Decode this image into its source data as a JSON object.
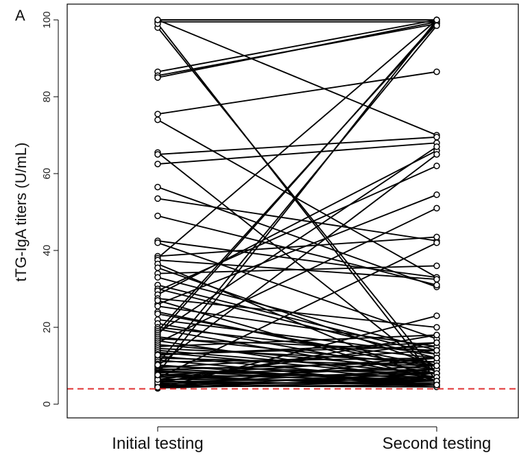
{
  "chart_data": {
    "type": "line",
    "panel_label": "A",
    "ylabel": "tTG-IgA titers (U/mL)",
    "categories": [
      "Initial testing",
      "Second testing"
    ],
    "ylim": [
      0,
      100
    ],
    "yticks": [
      0,
      20,
      40,
      60,
      80,
      100
    ],
    "reference_line": {
      "y": 4,
      "color": "#e03030",
      "style": "dashed"
    },
    "line_color": "#000000",
    "pairs": [
      [
        100,
        100
      ],
      [
        99.5,
        99.5
      ],
      [
        98,
        8
      ],
      [
        99,
        6
      ],
      [
        100,
        70
      ],
      [
        86.5,
        100
      ],
      [
        85.5,
        99
      ],
      [
        85,
        99.5
      ],
      [
        75.5,
        86.5
      ],
      [
        74,
        33
      ],
      [
        65.5,
        8
      ],
      [
        65,
        69.5
      ],
      [
        62.5,
        68
      ],
      [
        56.5,
        30.5
      ],
      [
        53.5,
        42.5
      ],
      [
        49,
        31
      ],
      [
        42.5,
        33
      ],
      [
        42,
        17
      ],
      [
        38.5,
        43.5
      ],
      [
        38,
        100
      ],
      [
        37.5,
        32.5
      ],
      [
        36.5,
        6
      ],
      [
        35.5,
        10
      ],
      [
        34,
        36
      ],
      [
        31,
        13
      ],
      [
        30,
        12
      ],
      [
        29.5,
        62
      ],
      [
        28.5,
        66
      ],
      [
        27.5,
        20
      ],
      [
        26,
        54.5
      ],
      [
        25.5,
        15
      ],
      [
        24,
        9
      ],
      [
        22,
        13
      ],
      [
        21,
        8
      ],
      [
        20,
        12
      ],
      [
        19.5,
        7
      ],
      [
        19,
        99
      ],
      [
        18.5,
        67
      ],
      [
        18,
        99.5
      ],
      [
        17.5,
        10
      ],
      [
        17,
        14
      ],
      [
        16.5,
        6
      ],
      [
        16,
        51
      ],
      [
        15.5,
        9
      ],
      [
        15,
        18
      ],
      [
        14.5,
        11
      ],
      [
        14,
        8
      ],
      [
        13.5,
        7
      ],
      [
        13,
        15
      ],
      [
        12.5,
        6
      ],
      [
        12,
        10
      ],
      [
        11.5,
        5
      ],
      [
        11,
        12
      ],
      [
        10.5,
        98.5
      ],
      [
        10,
        65
      ],
      [
        9.8,
        8
      ],
      [
        9.5,
        14
      ],
      [
        9.2,
        6
      ],
      [
        9,
        11
      ],
      [
        8.8,
        5
      ],
      [
        8.5,
        7
      ],
      [
        8.2,
        9
      ],
      [
        8,
        100
      ],
      [
        7.8,
        6
      ],
      [
        7.5,
        12
      ],
      [
        7.2,
        5
      ],
      [
        7,
        8
      ],
      [
        6.8,
        42
      ],
      [
        6.5,
        6
      ],
      [
        6.2,
        10
      ],
      [
        6,
        5
      ],
      [
        5.8,
        7
      ],
      [
        5.5,
        5.5
      ],
      [
        5.2,
        9
      ],
      [
        5,
        6
      ],
      [
        4.8,
        4.5
      ],
      [
        4.6,
        8
      ],
      [
        4.5,
        5
      ],
      [
        4.3,
        7
      ],
      [
        4.2,
        6
      ],
      [
        4.1,
        23
      ],
      [
        12.8,
        16
      ],
      [
        23.5,
        10
      ],
      [
        27,
        6
      ],
      [
        33,
        14
      ],
      [
        5.6,
        18
      ],
      [
        4.4,
        12
      ],
      [
        6.4,
        16
      ],
      [
        7.6,
        4.5
      ],
      [
        10.2,
        5
      ]
    ]
  }
}
